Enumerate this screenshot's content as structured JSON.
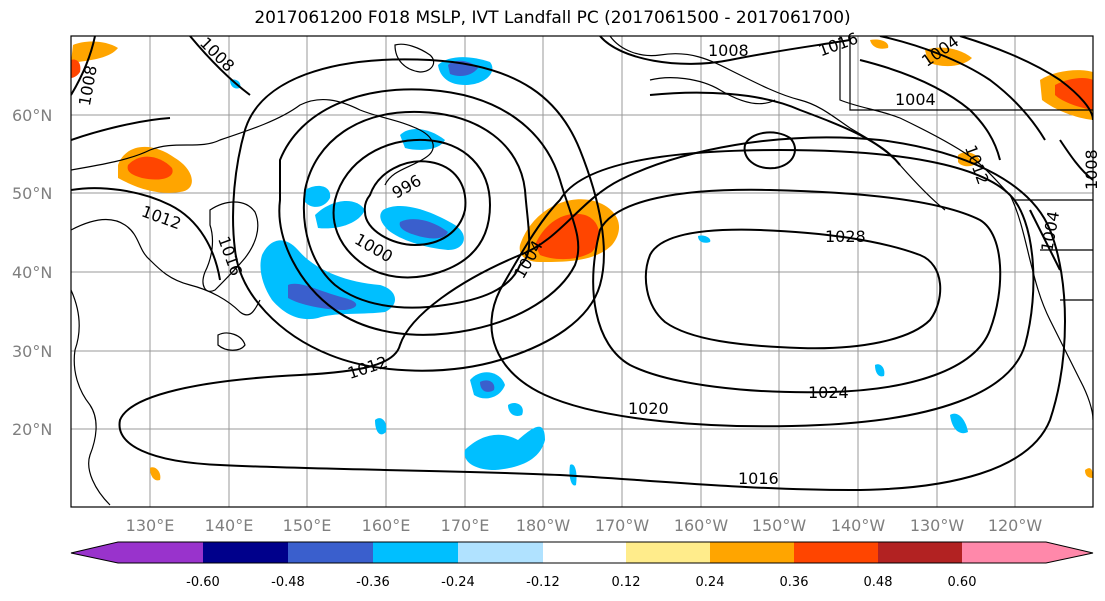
{
  "title": "2017061200 F018 MSLP, IVT Landfall PC (2017061500 - 2017061700)",
  "lat_labels": [
    "60°N",
    "50°N",
    "40°N",
    "30°N",
    "20°N"
  ],
  "lon_labels": [
    "130°E",
    "140°E",
    "150°E",
    "160°E",
    "170°E",
    "180°W",
    "170°W",
    "160°W",
    "150°W",
    "140°W",
    "130°W",
    "120°W"
  ],
  "isobar_labels": [
    "1008",
    "1008",
    "1008",
    "1008",
    "1012",
    "1016",
    "996",
    "1000",
    "1004",
    "1004",
    "1012",
    "1020",
    "1024",
    "1028",
    "1016",
    "1004",
    "1012",
    "1016",
    "1004"
  ],
  "colorbar": {
    "ticks": [
      "-0.60",
      "-0.48",
      "-0.36",
      "-0.24",
      "-0.12",
      "0.12",
      "0.24",
      "0.36",
      "0.48",
      "0.60"
    ],
    "colors": [
      "#9933cc",
      "#00008b",
      "#3a5fcd",
      "#00bfff",
      "#b0e2ff",
      "#ffffff",
      "#ffec8b",
      "#ffa500",
      "#ff4500",
      "#b22222",
      "#ff88aa"
    ]
  }
}
